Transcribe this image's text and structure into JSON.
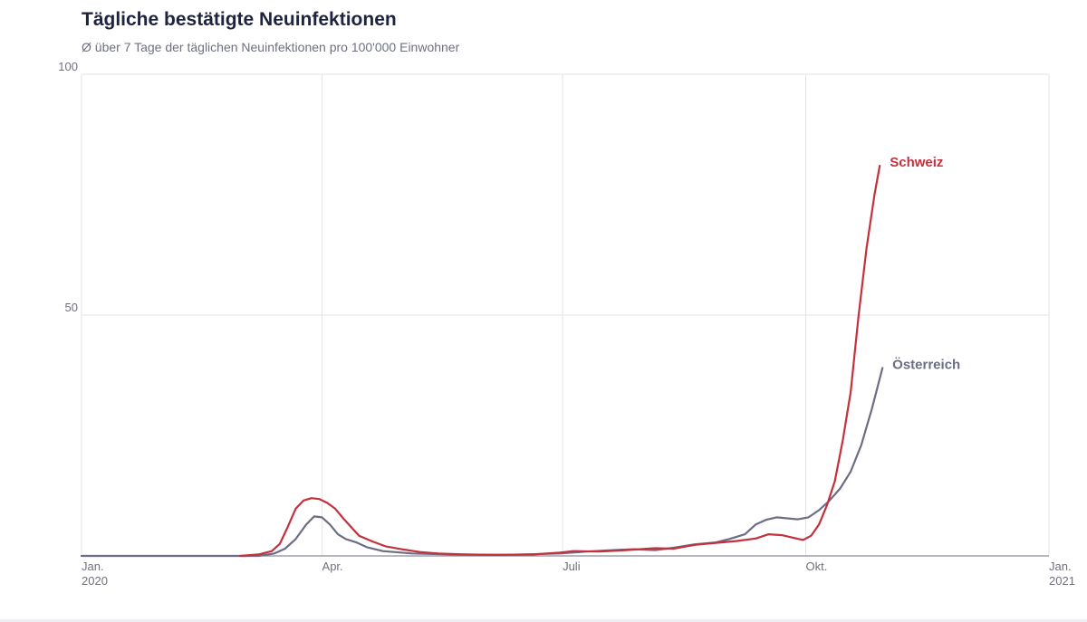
{
  "header": {
    "title": "Tägliche bestätigte Neuinfektionen",
    "subtitle": "Ø über 7 Tage der täglichen Neuinfektionen pro 100'000 Einwohner"
  },
  "chart_data": {
    "type": "line",
    "title": "Tägliche bestätigte Neuinfektionen",
    "subtitle": "Ø über 7 Tage der täglichen Neuinfektionen pro 100'000 Einwohner",
    "x_type": "date",
    "xlim": [
      "2020-01-01",
      "2021-01-01"
    ],
    "ylim": [
      0,
      100
    ],
    "y_ticks": [
      50,
      100
    ],
    "x_ticks": [
      {
        "date": "2020-01-01",
        "label": "Jan.",
        "sublabel": "2020"
      },
      {
        "date": "2020-04-01",
        "label": "Apr.",
        "sublabel": ""
      },
      {
        "date": "2020-07-01",
        "label": "Juli",
        "sublabel": ""
      },
      {
        "date": "2020-10-01",
        "label": "Okt.",
        "sublabel": ""
      },
      {
        "date": "2021-01-01",
        "label": "Jan.",
        "sublabel": "2021"
      }
    ],
    "grid": true,
    "legend": "direct labels at line ends",
    "series": [
      {
        "name": "Schweiz",
        "color": "#c5303d",
        "points": [
          [
            "2020-03-01",
            0
          ],
          [
            "2020-03-08",
            0.3
          ],
          [
            "2020-03-13",
            1.0
          ],
          [
            "2020-03-16",
            2.5
          ],
          [
            "2020-03-19",
            6.0
          ],
          [
            "2020-03-22",
            9.8
          ],
          [
            "2020-03-25",
            11.5
          ],
          [
            "2020-03-28",
            12.0
          ],
          [
            "2020-03-31",
            11.8
          ],
          [
            "2020-04-03",
            11.0
          ],
          [
            "2020-04-06",
            9.8
          ],
          [
            "2020-04-09",
            7.8
          ],
          [
            "2020-04-12",
            6.0
          ],
          [
            "2020-04-15",
            4.2
          ],
          [
            "2020-04-20",
            3.0
          ],
          [
            "2020-04-25",
            2.0
          ],
          [
            "2020-05-01",
            1.4
          ],
          [
            "2020-05-08",
            0.8
          ],
          [
            "2020-05-15",
            0.5
          ],
          [
            "2020-05-25",
            0.3
          ],
          [
            "2020-06-05",
            0.2
          ],
          [
            "2020-06-20",
            0.3
          ],
          [
            "2020-06-30",
            0.7
          ],
          [
            "2020-07-05",
            1.0
          ],
          [
            "2020-07-15",
            0.9
          ],
          [
            "2020-07-25",
            1.2
          ],
          [
            "2020-08-05",
            1.6
          ],
          [
            "2020-08-12",
            1.5
          ],
          [
            "2020-08-20",
            2.3
          ],
          [
            "2020-08-28",
            2.7
          ],
          [
            "2020-09-05",
            3.1
          ],
          [
            "2020-09-12",
            3.6
          ],
          [
            "2020-09-17",
            4.5
          ],
          [
            "2020-09-22",
            4.3
          ],
          [
            "2020-09-26",
            3.8
          ],
          [
            "2020-09-30",
            3.3
          ],
          [
            "2020-10-03",
            4.2
          ],
          [
            "2020-10-06",
            6.5
          ],
          [
            "2020-10-09",
            10.5
          ],
          [
            "2020-10-12",
            15.5
          ],
          [
            "2020-10-15",
            24.0
          ],
          [
            "2020-10-18",
            34.0
          ],
          [
            "2020-10-21",
            50.0
          ],
          [
            "2020-10-24",
            64.0
          ],
          [
            "2020-10-27",
            75.0
          ],
          [
            "2020-10-29",
            81.0
          ]
        ]
      },
      {
        "name": "Österreich",
        "color": "#6c6d85",
        "points": [
          [
            "2020-01-01",
            0
          ],
          [
            "2020-03-08",
            0
          ],
          [
            "2020-03-14",
            0.5
          ],
          [
            "2020-03-18",
            1.5
          ],
          [
            "2020-03-22",
            3.5
          ],
          [
            "2020-03-26",
            6.5
          ],
          [
            "2020-03-29",
            8.2
          ],
          [
            "2020-04-01",
            8.0
          ],
          [
            "2020-04-04",
            6.5
          ],
          [
            "2020-04-07",
            4.5
          ],
          [
            "2020-04-10",
            3.5
          ],
          [
            "2020-04-14",
            2.8
          ],
          [
            "2020-04-18",
            1.8
          ],
          [
            "2020-04-24",
            1.0
          ],
          [
            "2020-05-05",
            0.5
          ],
          [
            "2020-05-20",
            0.3
          ],
          [
            "2020-06-10",
            0.2
          ],
          [
            "2020-06-30",
            0.5
          ],
          [
            "2020-07-10",
            0.9
          ],
          [
            "2020-07-20",
            1.2
          ],
          [
            "2020-07-28",
            1.4
          ],
          [
            "2020-08-05",
            1.2
          ],
          [
            "2020-08-12",
            1.7
          ],
          [
            "2020-08-20",
            2.4
          ],
          [
            "2020-08-28",
            2.8
          ],
          [
            "2020-09-02",
            3.5
          ],
          [
            "2020-09-08",
            4.5
          ],
          [
            "2020-09-12",
            6.5
          ],
          [
            "2020-09-16",
            7.5
          ],
          [
            "2020-09-20",
            8.0
          ],
          [
            "2020-09-24",
            7.8
          ],
          [
            "2020-09-28",
            7.6
          ],
          [
            "2020-10-02",
            8.0
          ],
          [
            "2020-10-06",
            9.5
          ],
          [
            "2020-10-10",
            11.5
          ],
          [
            "2020-10-14",
            14.0
          ],
          [
            "2020-10-18",
            17.5
          ],
          [
            "2020-10-22",
            23.0
          ],
          [
            "2020-10-26",
            30.5
          ],
          [
            "2020-10-30",
            39.0
          ]
        ]
      }
    ]
  }
}
